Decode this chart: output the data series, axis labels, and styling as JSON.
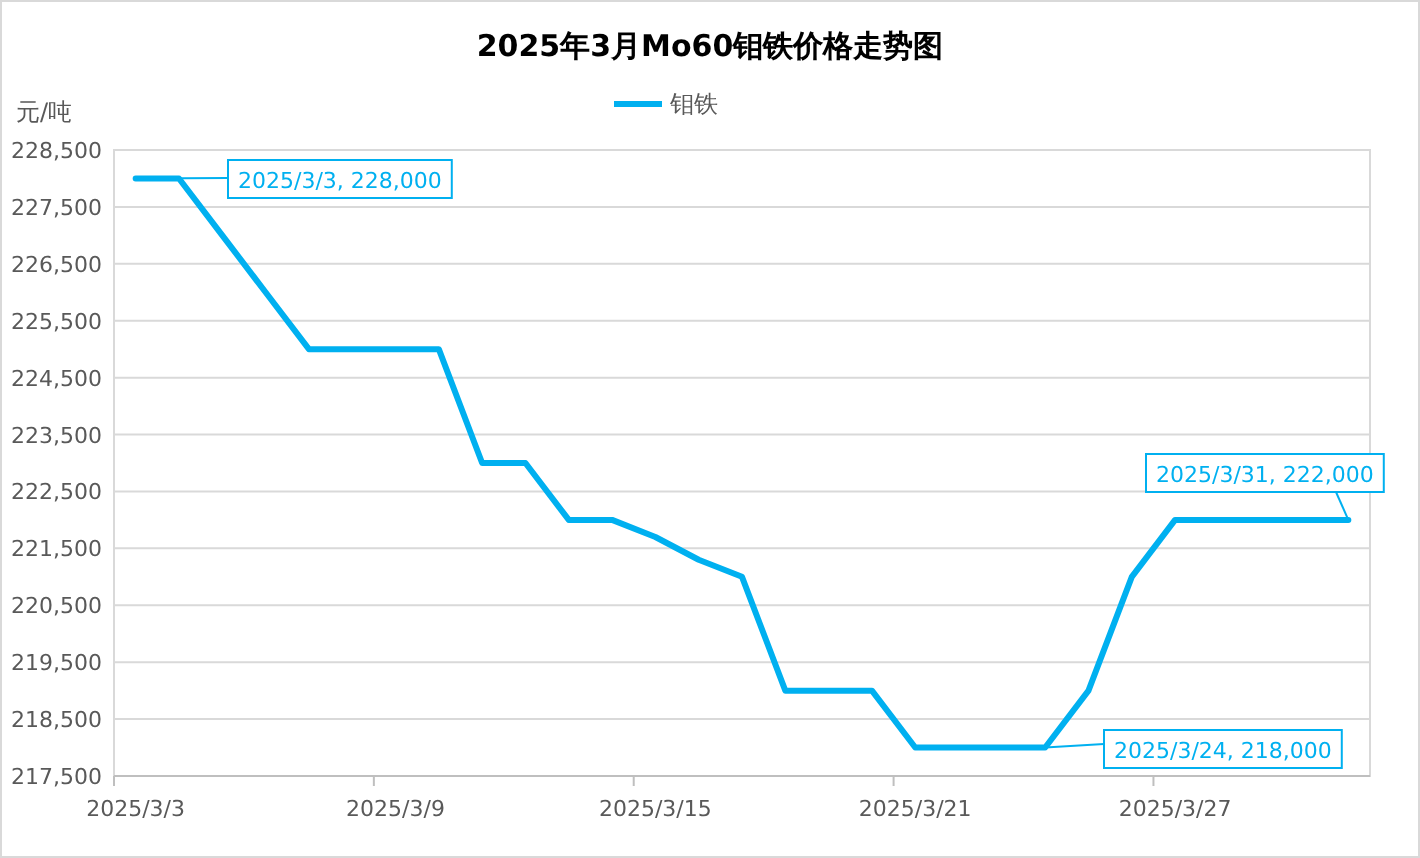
{
  "chart_data": {
    "type": "line",
    "title": "2025年3月Mo60钼铁价格走势图",
    "ylabel": "元/吨",
    "categories": [
      "2025/3/3",
      null,
      null,
      null,
      null,
      null,
      "2025/3/9",
      null,
      null,
      null,
      null,
      null,
      "2025/3/15",
      null,
      null,
      null,
      null,
      null,
      "2025/3/21",
      null,
      null,
      null,
      null,
      null,
      "2025/3/27",
      null,
      null,
      null,
      null
    ],
    "series": [
      {
        "name": "钼铁",
        "color": "#00b0f0",
        "values": [
          228000,
          228000,
          227000,
          226000,
          225000,
          225000,
          225000,
          225000,
          223000,
          223000,
          222000,
          222000,
          221700,
          221300,
          221000,
          219000,
          219000,
          219000,
          218000,
          218000,
          218000,
          218000,
          219000,
          221000,
          222000,
          222000,
          222000,
          222000,
          222000
        ]
      }
    ],
    "ylim": [
      217500,
      228500
    ],
    "yticks": [
      {
        "value": 217500,
        "label": "217,500"
      },
      {
        "value": 218500,
        "label": "218,500"
      },
      {
        "value": 219500,
        "label": "219,500"
      },
      {
        "value": 220500,
        "label": "220,500"
      },
      {
        "value": 221500,
        "label": "221,500"
      },
      {
        "value": 222500,
        "label": "222,500"
      },
      {
        "value": 223500,
        "label": "223,500"
      },
      {
        "value": 224500,
        "label": "224,500"
      },
      {
        "value": 225500,
        "label": "225,500"
      },
      {
        "value": 226500,
        "label": "226,500"
      },
      {
        "value": 227500,
        "label": "227,500"
      },
      {
        "value": 228500,
        "label": "228,500"
      }
    ],
    "grid": "y",
    "legend": "top",
    "marker": "none",
    "line_style": "solid",
    "annotations": [
      "2025/3/3, 228,000",
      "2025/3/24, 218,000",
      "2025/3/31, 222,000"
    ]
  }
}
